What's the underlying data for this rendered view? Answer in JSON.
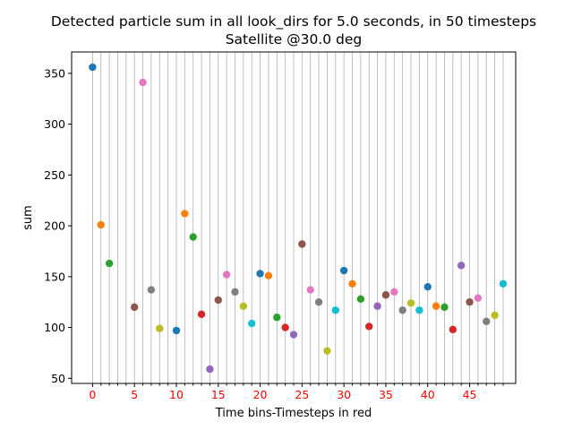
{
  "chart_data": {
    "type": "scatter",
    "title": "Detected particle sum in all look_dirs for 5.0 seconds, in 50 timesteps",
    "subtitle": "Satellite @30.0 deg",
    "xlabel": "Time bins-Timesteps in red",
    "ylabel": "sum",
    "xlim": [
      -2.5,
      50.5
    ],
    "ylim": [
      45,
      371
    ],
    "x_ticks": [
      0,
      5,
      10,
      15,
      20,
      25,
      30,
      35,
      40,
      45
    ],
    "x_tick_color": "#ff0000",
    "y_ticks": [
      50,
      100,
      150,
      200,
      250,
      300,
      350
    ],
    "grid": "vertical lines at every integer x",
    "legend": "none",
    "colors": [
      "#1f77b4",
      "#ff7f0e",
      "#2ca02c",
      "#d62728",
      "#9467bd",
      "#8c564b",
      "#e377c2",
      "#7f7f7f",
      "#bcbd22",
      "#17becf"
    ],
    "x": [
      0,
      1,
      2,
      3,
      4,
      5,
      6,
      7,
      8,
      9,
      10,
      11,
      12,
      13,
      14,
      15,
      16,
      17,
      18,
      19,
      20,
      21,
      22,
      23,
      24,
      25,
      26,
      27,
      28,
      29,
      30,
      31,
      32,
      33,
      34,
      35,
      36,
      37,
      38,
      39,
      40,
      41,
      42,
      43,
      44,
      45,
      46,
      47,
      48,
      49
    ],
    "values": [
      356,
      201,
      163,
      null,
      null,
      120,
      341,
      137,
      99,
      null,
      97,
      212,
      189,
      113,
      59,
      127,
      152,
      135,
      121,
      104,
      153,
      151,
      110,
      100,
      93,
      182,
      137,
      125,
      77,
      117,
      156,
      143,
      128,
      101,
      121,
      132,
      135,
      117,
      124,
      117,
      140,
      121,
      120,
      98,
      161,
      125,
      129,
      106,
      112,
      143
    ]
  }
}
